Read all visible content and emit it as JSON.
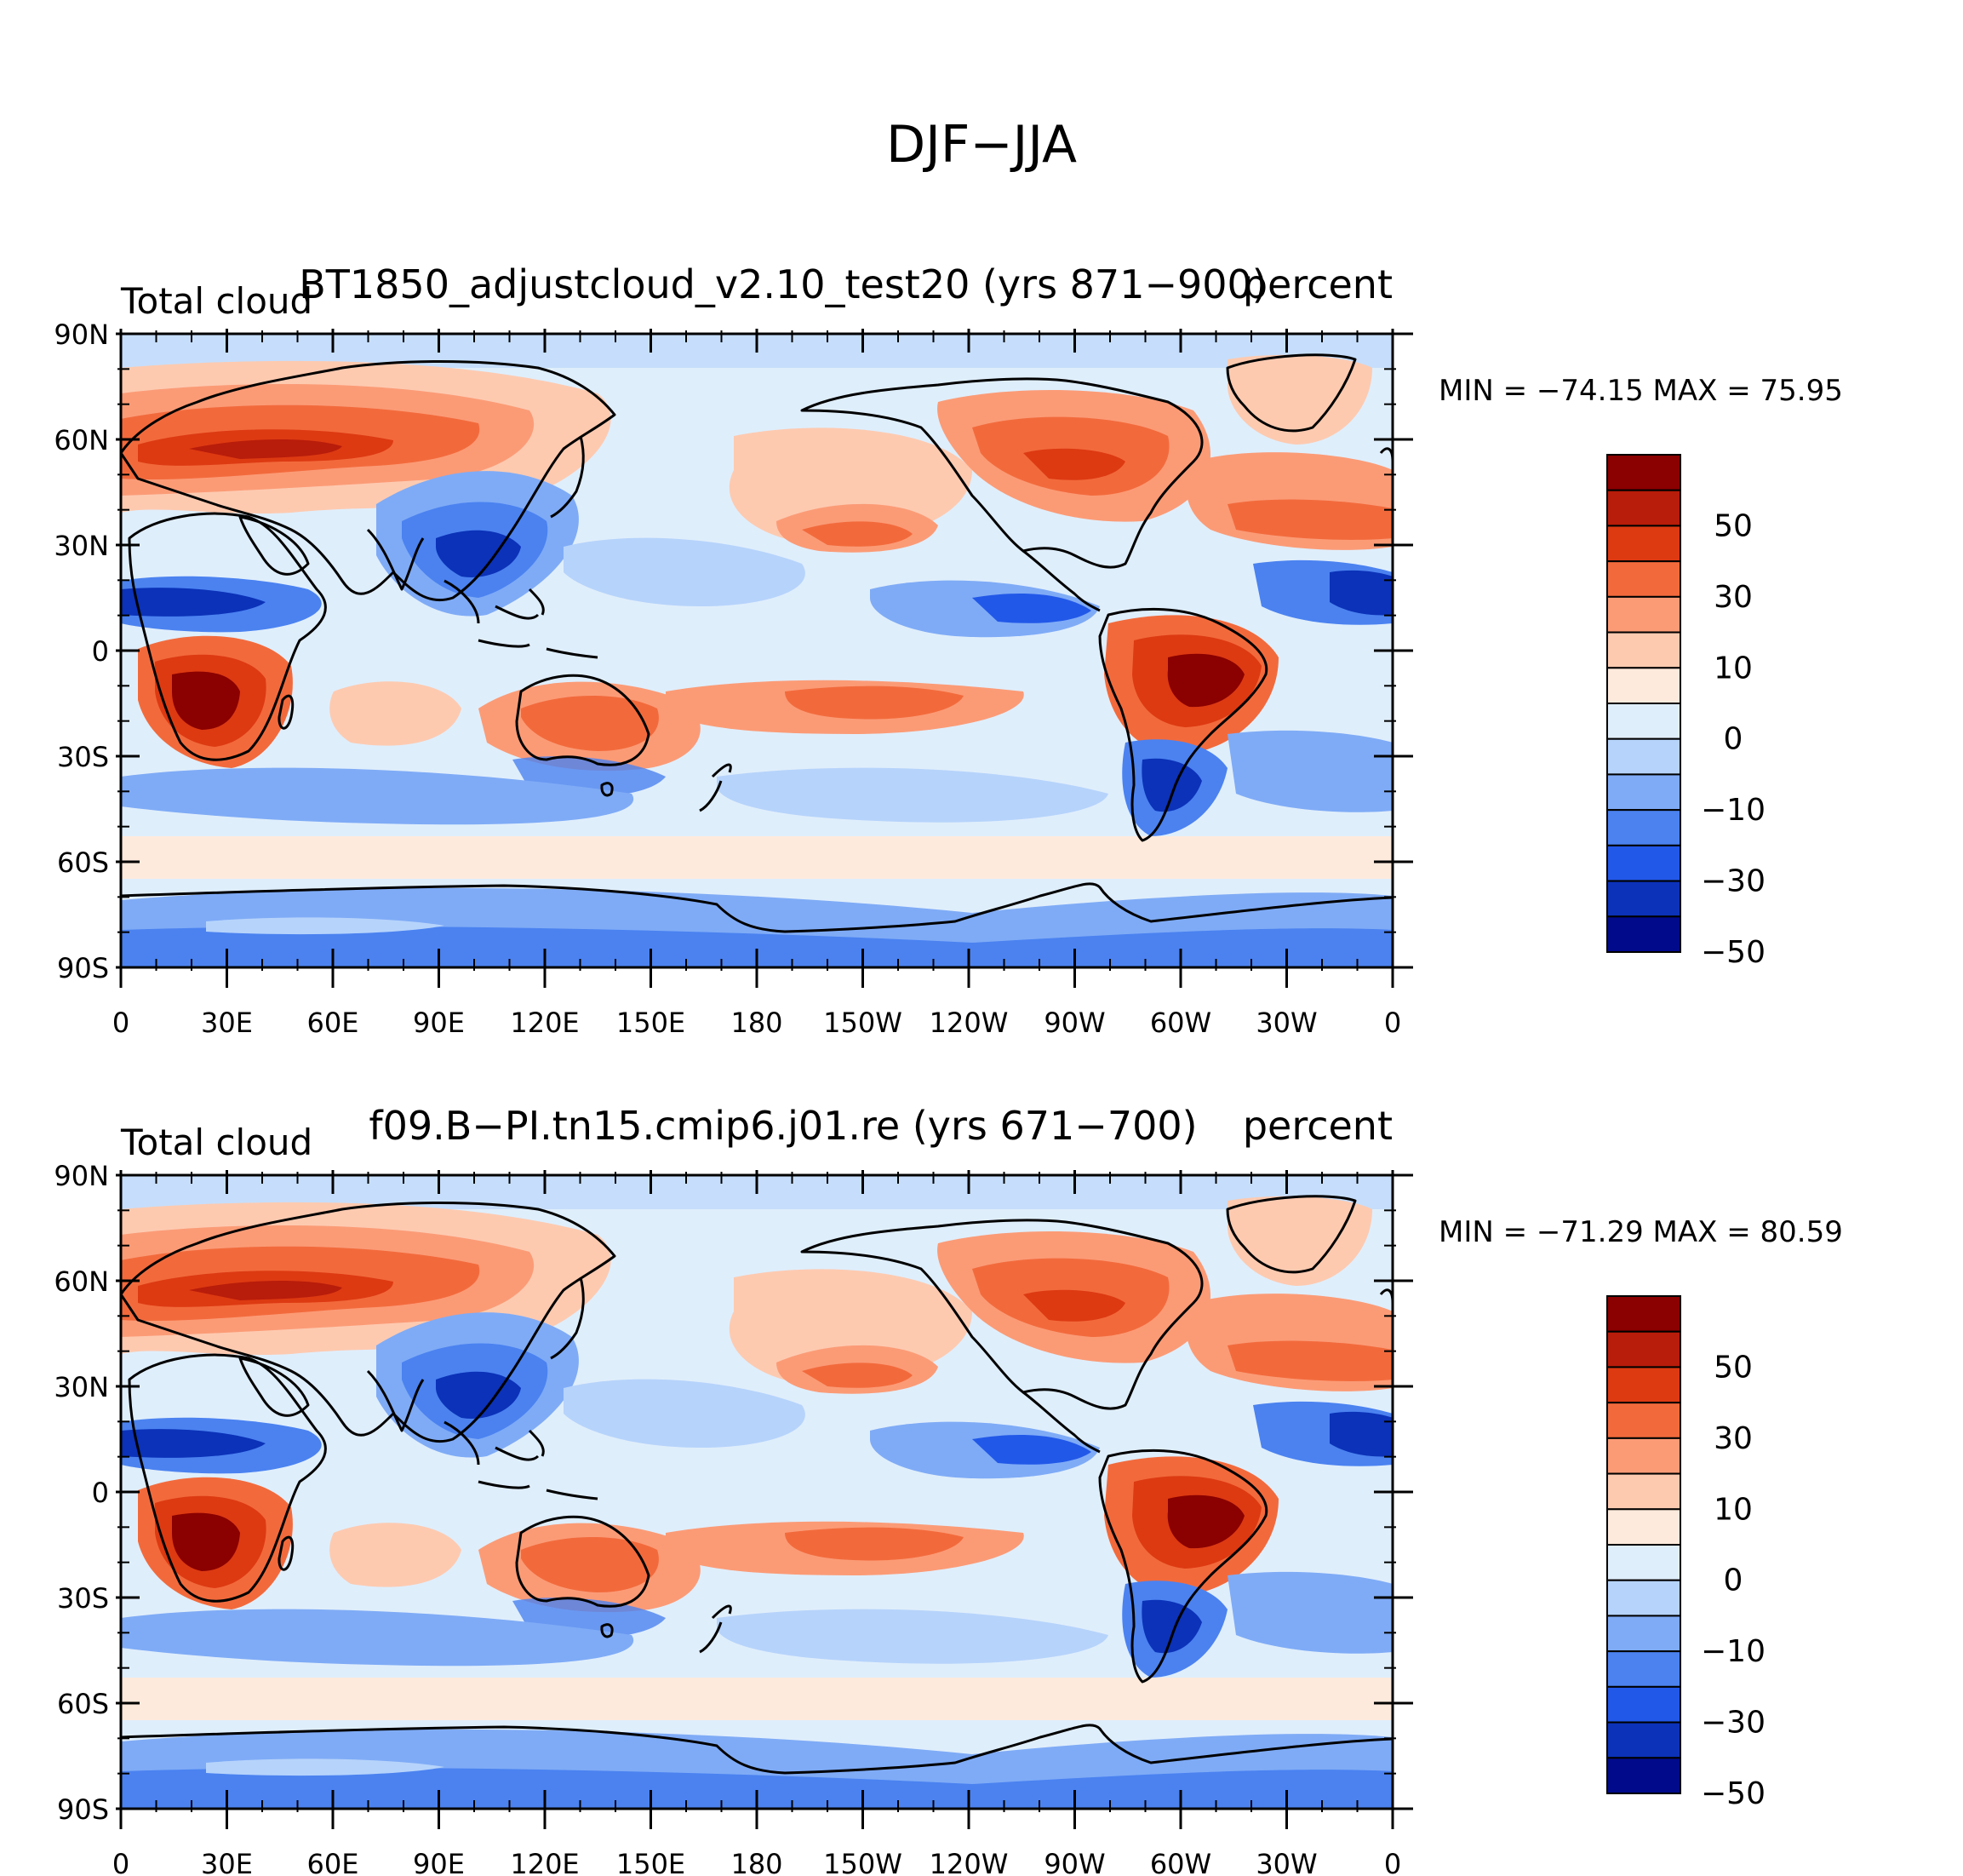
{
  "figure": {
    "title": "DJF−JJA"
  },
  "axes": {
    "lat_labels": [
      "90N",
      "60N",
      "30N",
      "0",
      "30S",
      "60S",
      "90S"
    ],
    "lon_labels": [
      "0",
      "30E",
      "60E",
      "90E",
      "120E",
      "150E",
      "180",
      "150W",
      "120W",
      "90W",
      "60W",
      "30W",
      "0"
    ]
  },
  "colorbar": {
    "labels": [
      "50",
      "30",
      "10",
      "0",
      "−10",
      "−30",
      "−50"
    ],
    "colors": [
      "#8b0000",
      "#b81c0a",
      "#dd3a12",
      "#f26a3c",
      "#fb9b76",
      "#fdcab0",
      "#feeadc",
      "#dfeefb",
      "#b6d3fb",
      "#7fabf6",
      "#4b82f0",
      "#2258e8",
      "#0b32b8",
      "#010a8a"
    ]
  },
  "panels": [
    {
      "left_title": "Total cloud",
      "center_title": "BT1850_adjustcloud_v2.10_test20 (yrs 871−900)",
      "right_title": "percent",
      "stats": "MIN = −74.15  MAX =   75.95"
    },
    {
      "left_title": "Total cloud",
      "center_title": "f09.B−PI.tn15.cmip6.j01.re (yrs 671−700)",
      "right_title": "percent",
      "stats": "MIN = −71.29  MAX =   80.59"
    }
  ]
}
